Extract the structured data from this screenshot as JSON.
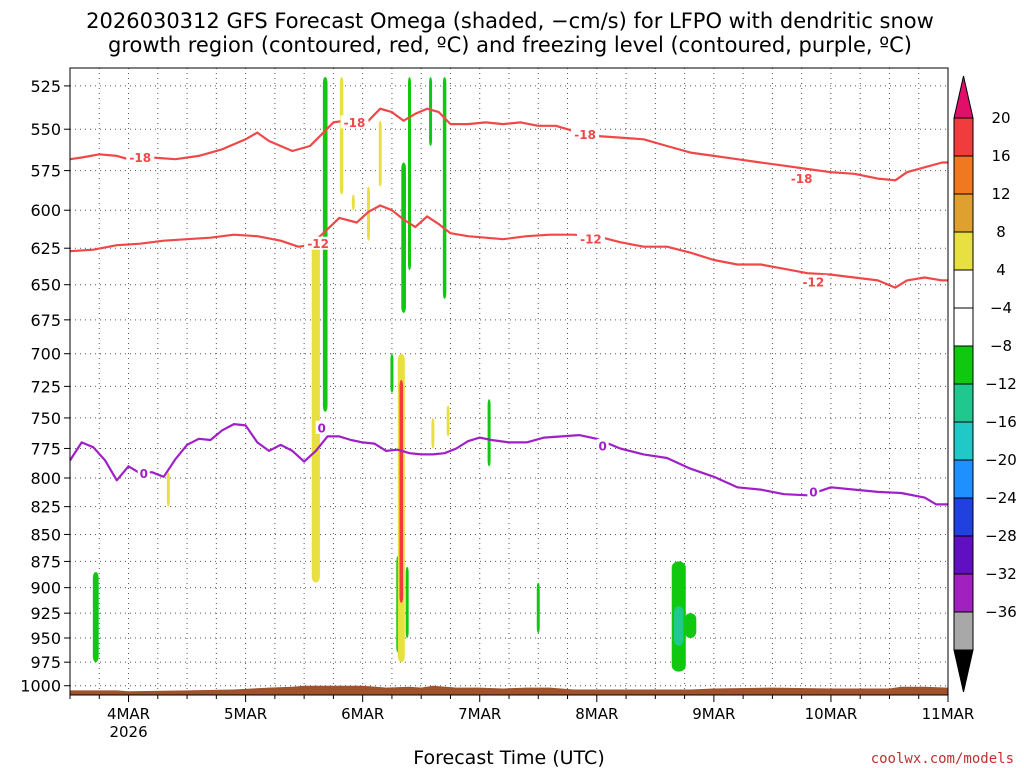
{
  "chart_data": {
    "type": "heatmap",
    "title_line1": "2026030312 GFS Forecast Omega (shaded, −cm/s) for LFPO with dendritic snow",
    "title_line2": "growth region (contoured, red, ºC) and freezing level (contoured, purple, ºC)",
    "xlabel": "Forecast Time (UTC)",
    "credit": "coolwx.com/models",
    "xlim": [
      3.5,
      11.0
    ],
    "ylim": [
      1010,
      515
    ],
    "y_ticks": [
      525,
      550,
      575,
      600,
      625,
      650,
      675,
      700,
      725,
      750,
      775,
      800,
      825,
      850,
      875,
      900,
      925,
      950,
      975,
      1000
    ],
    "x_ticks": [
      {
        "value": 4,
        "label": "4MAR",
        "sub": "2026"
      },
      {
        "value": 5,
        "label": "5MAR",
        "sub": ""
      },
      {
        "value": 6,
        "label": "6MAR",
        "sub": ""
      },
      {
        "value": 7,
        "label": "7MAR",
        "sub": ""
      },
      {
        "value": 8,
        "label": "8MAR",
        "sub": ""
      },
      {
        "value": 9,
        "label": "9MAR",
        "sub": ""
      },
      {
        "value": 10,
        "label": "10MAR",
        "sub": ""
      },
      {
        "value": 11,
        "label": "11MAR",
        "sub": ""
      }
    ],
    "colorbar": {
      "top_color": "#e0106a",
      "bottom_color": "#000000",
      "bins": [
        {
          "color": "#f03c3c",
          "label": "20"
        },
        {
          "color": "#f07820",
          "label": "16"
        },
        {
          "color": "#e0a030",
          "label": "12"
        },
        {
          "color": "#e8e040",
          "label": "8"
        },
        {
          "color": "#ffffff",
          "label": "4"
        },
        {
          "color": "#ffffff",
          "label": "−4"
        },
        {
          "color": "#10c810",
          "label": "−8"
        },
        {
          "color": "#20c890",
          "label": "−12"
        },
        {
          "color": "#20c8c8",
          "label": "−16"
        },
        {
          "color": "#1e90ff",
          "label": "−20"
        },
        {
          "color": "#2040e0",
          "label": "−24"
        },
        {
          "color": "#6010c0",
          "label": "−28"
        },
        {
          "color": "#a020c0",
          "label": "−32"
        },
        {
          "color": "#a8a8a8",
          "label": "−36"
        }
      ]
    },
    "contours": [
      {
        "name": "minus18",
        "level_label": "-18",
        "color": "#f04848",
        "points": [
          [
            3.5,
            568
          ],
          [
            3.6,
            567
          ],
          [
            3.75,
            565
          ],
          [
            3.9,
            566
          ],
          [
            4.0,
            568
          ],
          [
            4.2,
            567
          ],
          [
            4.4,
            568
          ],
          [
            4.6,
            566
          ],
          [
            4.8,
            562
          ],
          [
            5.0,
            556
          ],
          [
            5.1,
            552
          ],
          [
            5.2,
            557
          ],
          [
            5.4,
            563
          ],
          [
            5.55,
            560
          ],
          [
            5.65,
            553
          ],
          [
            5.75,
            546
          ],
          [
            5.85,
            545
          ],
          [
            5.95,
            549
          ],
          [
            6.05,
            545
          ],
          [
            6.15,
            538
          ],
          [
            6.25,
            540
          ],
          [
            6.35,
            545
          ],
          [
            6.45,
            541
          ],
          [
            6.55,
            538
          ],
          [
            6.65,
            540
          ],
          [
            6.75,
            547
          ],
          [
            6.9,
            547
          ],
          [
            7.05,
            546
          ],
          [
            7.2,
            547
          ],
          [
            7.35,
            546
          ],
          [
            7.5,
            548
          ],
          [
            7.65,
            548
          ],
          [
            7.8,
            551
          ],
          [
            8.0,
            554
          ],
          [
            8.2,
            555
          ],
          [
            8.4,
            556
          ],
          [
            8.6,
            560
          ],
          [
            8.8,
            564
          ],
          [
            9.0,
            566
          ],
          [
            9.2,
            568
          ],
          [
            9.4,
            570
          ],
          [
            9.6,
            572
          ],
          [
            9.8,
            574
          ],
          [
            10.0,
            576
          ],
          [
            10.2,
            577
          ],
          [
            10.4,
            580
          ],
          [
            10.55,
            581
          ],
          [
            10.65,
            576
          ],
          [
            10.8,
            573
          ],
          [
            10.95,
            570
          ],
          [
            11.0,
            570
          ]
        ],
        "labels": [
          {
            "x": 4.1,
            "p": 567
          },
          {
            "x": 5.93,
            "p": 546
          },
          {
            "x": 7.9,
            "p": 553
          },
          {
            "x": 9.75,
            "p": 580
          }
        ]
      },
      {
        "name": "minus12",
        "level_label": "-12",
        "color": "#f04848",
        "points": [
          [
            3.5,
            627
          ],
          [
            3.7,
            626
          ],
          [
            3.9,
            623
          ],
          [
            4.1,
            622
          ],
          [
            4.3,
            620
          ],
          [
            4.5,
            619
          ],
          [
            4.7,
            618
          ],
          [
            4.9,
            616
          ],
          [
            5.1,
            617
          ],
          [
            5.3,
            620
          ],
          [
            5.45,
            624
          ],
          [
            5.55,
            623
          ],
          [
            5.65,
            616
          ],
          [
            5.8,
            605
          ],
          [
            5.95,
            608
          ],
          [
            6.05,
            601
          ],
          [
            6.15,
            597
          ],
          [
            6.25,
            600
          ],
          [
            6.35,
            606
          ],
          [
            6.45,
            611
          ],
          [
            6.55,
            604
          ],
          [
            6.65,
            609
          ],
          [
            6.75,
            615
          ],
          [
            6.9,
            617
          ],
          [
            7.05,
            618
          ],
          [
            7.2,
            619
          ],
          [
            7.4,
            617
          ],
          [
            7.6,
            616
          ],
          [
            7.8,
            616
          ],
          [
            8.0,
            617
          ],
          [
            8.2,
            621
          ],
          [
            8.4,
            624
          ],
          [
            8.6,
            624
          ],
          [
            8.8,
            628
          ],
          [
            9.0,
            633
          ],
          [
            9.2,
            636
          ],
          [
            9.4,
            636
          ],
          [
            9.6,
            639
          ],
          [
            9.8,
            642
          ],
          [
            10.0,
            643
          ],
          [
            10.2,
            645
          ],
          [
            10.4,
            647
          ],
          [
            10.55,
            652
          ],
          [
            10.65,
            647
          ],
          [
            10.8,
            645
          ],
          [
            10.95,
            647
          ],
          [
            11.0,
            647
          ]
        ],
        "labels": [
          {
            "x": 5.62,
            "p": 622
          },
          {
            "x": 7.95,
            "p": 619
          },
          {
            "x": 9.85,
            "p": 648
          }
        ]
      },
      {
        "name": "freezing0",
        "level_label": "0",
        "color": "#a020c8",
        "points": [
          [
            3.5,
            785
          ],
          [
            3.6,
            770
          ],
          [
            3.7,
            774
          ],
          [
            3.8,
            785
          ],
          [
            3.9,
            802
          ],
          [
            4.0,
            790
          ],
          [
            4.1,
            796
          ],
          [
            4.2,
            795
          ],
          [
            4.3,
            799
          ],
          [
            4.4,
            784
          ],
          [
            4.5,
            772
          ],
          [
            4.6,
            767
          ],
          [
            4.7,
            768
          ],
          [
            4.8,
            760
          ],
          [
            4.9,
            755
          ],
          [
            5.0,
            756
          ],
          [
            5.1,
            770
          ],
          [
            5.2,
            777
          ],
          [
            5.3,
            772
          ],
          [
            5.4,
            777
          ],
          [
            5.5,
            786
          ],
          [
            5.6,
            777
          ],
          [
            5.7,
            765
          ],
          [
            5.8,
            765
          ],
          [
            5.9,
            768
          ],
          [
            6.0,
            770
          ],
          [
            6.1,
            771
          ],
          [
            6.2,
            777
          ],
          [
            6.3,
            776
          ],
          [
            6.4,
            779
          ],
          [
            6.5,
            780
          ],
          [
            6.6,
            780
          ],
          [
            6.7,
            779
          ],
          [
            6.8,
            775
          ],
          [
            6.9,
            769
          ],
          [
            7.0,
            766
          ],
          [
            7.1,
            768
          ],
          [
            7.25,
            770
          ],
          [
            7.4,
            770
          ],
          [
            7.55,
            766
          ],
          [
            7.7,
            765
          ],
          [
            7.85,
            764
          ],
          [
            8.0,
            767
          ],
          [
            8.2,
            775
          ],
          [
            8.4,
            780
          ],
          [
            8.6,
            783
          ],
          [
            8.8,
            792
          ],
          [
            9.0,
            799
          ],
          [
            9.2,
            808
          ],
          [
            9.4,
            810
          ],
          [
            9.6,
            814
          ],
          [
            9.8,
            815
          ],
          [
            10.0,
            808
          ],
          [
            10.2,
            810
          ],
          [
            10.4,
            812
          ],
          [
            10.6,
            813
          ],
          [
            10.8,
            817
          ],
          [
            10.9,
            823
          ],
          [
            11.0,
            823
          ]
        ],
        "labels": [
          {
            "x": 4.13,
            "p": 796
          },
          {
            "x": 5.65,
            "p": 758
          },
          {
            "x": 8.05,
            "p": 773
          },
          {
            "x": 9.85,
            "p": 812
          }
        ]
      }
    ],
    "shading": [
      {
        "x": 3.72,
        "half_width": 0.025,
        "p_top": 885,
        "p_bottom": 975,
        "color": "#10c810"
      },
      {
        "x": 4.34,
        "half_width": 0.004,
        "p_top": 795,
        "p_bottom": 825,
        "color": "#e8e040"
      },
      {
        "x": 5.6,
        "half_width": 0.035,
        "p_top": 620,
        "p_bottom": 895,
        "color": "#e8e040"
      },
      {
        "x": 5.68,
        "half_width": 0.02,
        "p_top": 520,
        "p_bottom": 745,
        "color": "#10c810"
      },
      {
        "x": 5.82,
        "half_width": 0.015,
        "p_top": 520,
        "p_bottom": 590,
        "color": "#e8e040"
      },
      {
        "x": 5.92,
        "half_width": 0.005,
        "p_top": 590,
        "p_bottom": 600,
        "color": "#e8e040"
      },
      {
        "x": 6.05,
        "half_width": 0.008,
        "p_top": 585,
        "p_bottom": 620,
        "color": "#e8e040"
      },
      {
        "x": 6.15,
        "half_width": 0.008,
        "p_top": 545,
        "p_bottom": 585,
        "color": "#e8e040"
      },
      {
        "x": 6.25,
        "half_width": 0.006,
        "p_top": 700,
        "p_bottom": 730,
        "color": "#10c810"
      },
      {
        "x": 6.3,
        "half_width": 0.01,
        "p_top": 870,
        "p_bottom": 965,
        "color": "#10c810"
      },
      {
        "x": 6.33,
        "half_width": 0.03,
        "p_top": 700,
        "p_bottom": 975,
        "color": "#e8e040"
      },
      {
        "x": 6.33,
        "half_width": 0.015,
        "p_top": 720,
        "p_bottom": 915,
        "color": "#f03c3c"
      },
      {
        "x": 6.35,
        "half_width": 0.02,
        "p_top": 570,
        "p_bottom": 670,
        "color": "#10c810"
      },
      {
        "x": 6.4,
        "half_width": 0.01,
        "p_top": 520,
        "p_bottom": 640,
        "color": "#10c810"
      },
      {
        "x": 6.38,
        "half_width": 0.012,
        "p_top": 880,
        "p_bottom": 950,
        "color": "#10c810"
      },
      {
        "x": 6.58,
        "half_width": 0.01,
        "p_top": 520,
        "p_bottom": 560,
        "color": "#10c810"
      },
      {
        "x": 6.6,
        "half_width": 0.006,
        "p_top": 750,
        "p_bottom": 775,
        "color": "#e8e040"
      },
      {
        "x": 6.7,
        "half_width": 0.015,
        "p_top": 520,
        "p_bottom": 660,
        "color": "#10c810"
      },
      {
        "x": 6.73,
        "half_width": 0.006,
        "p_top": 740,
        "p_bottom": 765,
        "color": "#e8e040"
      },
      {
        "x": 7.08,
        "half_width": 0.006,
        "p_top": 735,
        "p_bottom": 790,
        "color": "#10c810"
      },
      {
        "x": 7.5,
        "half_width": 0.008,
        "p_top": 895,
        "p_bottom": 945,
        "color": "#10c810"
      },
      {
        "x": 8.7,
        "half_width": 0.06,
        "p_top": 875,
        "p_bottom": 985,
        "color": "#10c810"
      },
      {
        "x": 8.7,
        "half_width": 0.04,
        "p_top": 918,
        "p_bottom": 958,
        "color": "#20c890"
      },
      {
        "x": 8.8,
        "half_width": 0.05,
        "p_top": 925,
        "p_bottom": 950,
        "color": "#10c810"
      }
    ],
    "terrain": {
      "color": "#a0522d",
      "points": [
        [
          3.5,
          1005
        ],
        [
          3.9,
          1005
        ],
        [
          4.0,
          1006
        ],
        [
          4.5,
          1005
        ],
        [
          4.9,
          1004
        ],
        [
          5.2,
          1002
        ],
        [
          5.4,
          1001
        ],
        [
          5.5,
          1000
        ],
        [
          5.8,
          1000
        ],
        [
          6.0,
          1000
        ],
        [
          6.2,
          1002
        ],
        [
          6.4,
          1001
        ],
        [
          6.5,
          1002
        ],
        [
          6.6,
          1000
        ],
        [
          6.8,
          1002
        ],
        [
          7.0,
          1002
        ],
        [
          7.2,
          1003
        ],
        [
          7.4,
          1002
        ],
        [
          7.6,
          1002
        ],
        [
          7.8,
          1004
        ],
        [
          8.0,
          1004
        ],
        [
          8.4,
          1004
        ],
        [
          8.8,
          1004
        ],
        [
          9.0,
          1003
        ],
        [
          9.5,
          1002
        ],
        [
          10.0,
          1003
        ],
        [
          10.5,
          1003
        ],
        [
          10.6,
          1001
        ],
        [
          10.8,
          1001
        ],
        [
          11.0,
          1002
        ]
      ]
    }
  }
}
